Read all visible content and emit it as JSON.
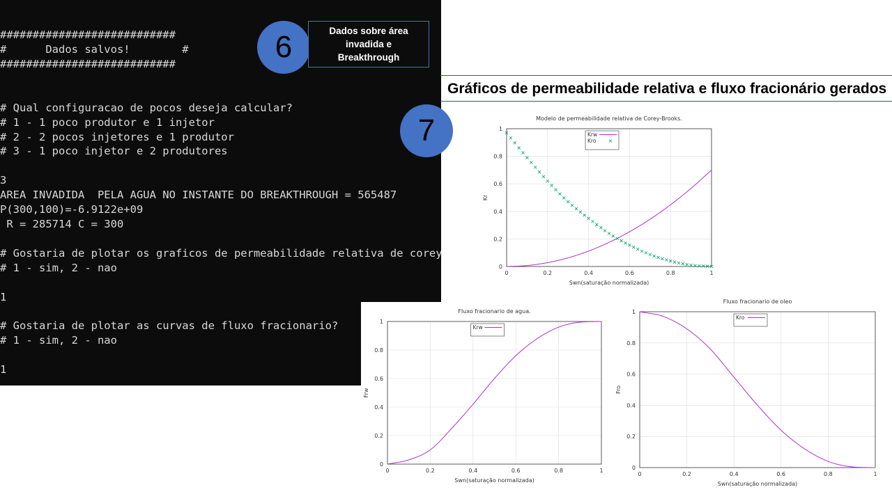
{
  "terminal": {
    "lines": [
      "###########################",
      "#      Dados salvos!        #",
      "###########################",
      "# Qual configuracao de pocos deseja calcular?",
      "# 1 - 1 poco produtor e 1 injetor",
      "# 2 - 2 pocos injetores e 1 produtor",
      "# 3 - 1 poco injetor e 2 produtores",
      "3",
      "AREA INVADIDA  PELA AGUA NO INSTANTE DO BREAKTHROUGH = 565487",
      "P(300,100)=-6.9122e+09",
      " R = 285714 C = 300",
      "# Gostaria de plotar os graficos de permeabilidade relativa de corey-brooks?",
      "# 1 - sim, 2 - nao",
      "1",
      "# Gostaria de plotar as curvas de fluxo fracionario?",
      "# 1 - sim, 2 - nao",
      "1"
    ]
  },
  "annotations": {
    "badge6": "6",
    "callout6_line1": "Dados sobre área",
    "callout6_line2": "invadida e",
    "callout6_line3": "Breakthrough",
    "badge7": "7",
    "title7": "Gráficos de permeabilidade relativa e fluxo fracionário gerados"
  },
  "colors": {
    "badge": "#4472c4",
    "series_purple": "#b030d0",
    "series_green": "#00a070"
  },
  "chart_data": [
    {
      "type": "line",
      "title": "Modelo de permeabilidade relativa de Corey-Brooks.",
      "xlabel": "Swn(saturação normalizada)",
      "ylabel": "Kr",
      "xlim": [
        0,
        1
      ],
      "ylim": [
        0,
        1
      ],
      "xticks": [
        "0",
        "0.2",
        "0.4",
        "0.6",
        "0.8",
        "1"
      ],
      "yticks": [
        "0",
        "0.2",
        "0.4",
        "0.6",
        "0.8",
        "1"
      ],
      "grid": true,
      "legend": "top-center",
      "series": [
        {
          "name": "Krw",
          "style": "line",
          "color": "#b030d0",
          "x": [
            0,
            0.1,
            0.2,
            0.3,
            0.4,
            0.5,
            0.6,
            0.7,
            0.8,
            0.9,
            1
          ],
          "y": [
            0,
            0.007,
            0.028,
            0.063,
            0.112,
            0.175,
            0.252,
            0.343,
            0.448,
            0.567,
            0.7
          ]
        },
        {
          "name": "Kro",
          "style": "markers",
          "color": "#00a070",
          "x": [
            0,
            0.1,
            0.2,
            0.3,
            0.4,
            0.5,
            0.6,
            0.7,
            0.8,
            0.9,
            1
          ],
          "y": [
            0.97,
            0.79,
            0.62,
            0.47,
            0.35,
            0.24,
            0.155,
            0.087,
            0.04,
            0.01,
            0
          ]
        }
      ]
    },
    {
      "type": "line",
      "title": "Fluxo fracionario de agua.",
      "xlabel": "Swn(saturação normalizada)",
      "ylabel": "Frw",
      "xlim": [
        0,
        1
      ],
      "ylim": [
        0,
        1
      ],
      "xticks": [
        "0",
        "0.2",
        "0.4",
        "0.6",
        "0.8",
        "1"
      ],
      "yticks": [
        "0",
        "0.2",
        "0.4",
        "0.6",
        "0.8",
        "1"
      ],
      "grid": true,
      "legend": "top-center",
      "series": [
        {
          "name": "Krw",
          "style": "line",
          "color": "#b030d0",
          "x": [
            0,
            0.1,
            0.2,
            0.3,
            0.4,
            0.5,
            0.6,
            0.7,
            0.8,
            0.9,
            1
          ],
          "y": [
            0,
            0.03,
            0.1,
            0.25,
            0.42,
            0.6,
            0.76,
            0.88,
            0.96,
            0.995,
            1
          ]
        }
      ]
    },
    {
      "type": "line",
      "title": "Fluxo fracionario de oleo",
      "xlabel": "Swn(saturação normalizada)",
      "ylabel": "Fro",
      "xlim": [
        0,
        1
      ],
      "ylim": [
        0,
        1
      ],
      "xticks": [
        "0",
        "0.2",
        "0.4",
        "0.6",
        "0.8",
        "1"
      ],
      "yticks": [
        "0",
        "0.2",
        "0.4",
        "0.6",
        "0.8",
        "1"
      ],
      "grid": true,
      "legend": "top-center",
      "series": [
        {
          "name": "Kro",
          "style": "line",
          "color": "#b030d0",
          "x": [
            0,
            0.1,
            0.2,
            0.3,
            0.4,
            0.5,
            0.6,
            0.7,
            0.8,
            0.9,
            1
          ],
          "y": [
            1,
            0.97,
            0.89,
            0.76,
            0.58,
            0.4,
            0.24,
            0.12,
            0.04,
            0.005,
            0
          ]
        }
      ]
    }
  ]
}
